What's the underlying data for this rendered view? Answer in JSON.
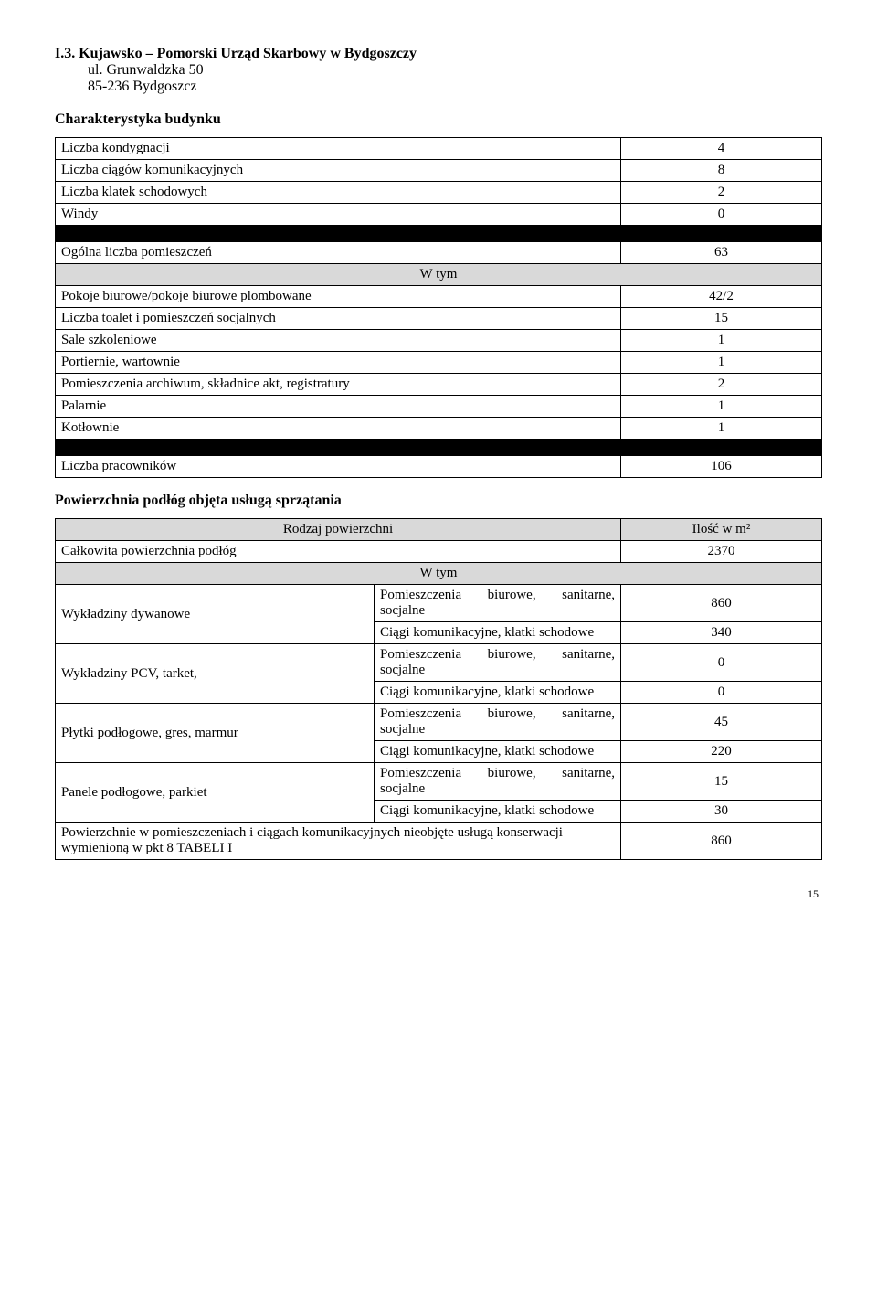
{
  "header": {
    "title": "I.3. Kujawsko – Pomorski Urząd Skarbowy w Bydgoszczy",
    "address1": "ul. Grunwaldzka 50",
    "address2": "85-236 Bydgoszcz"
  },
  "section1": {
    "heading": "Charakterystyka budynku",
    "rows": {
      "kondygnacje_label": "Liczba kondygnacji",
      "kondygnacje_val": "4",
      "ciagi_label": "Liczba ciągów komunikacyjnych",
      "ciagi_val": "8",
      "klatki_label": "Liczba klatek schodowych",
      "klatki_val": "2",
      "windy_label": "Windy",
      "windy_val": "0",
      "ogolna_label": "Ogólna liczba pomieszczeń",
      "ogolna_val": "63",
      "wtym": "W tym",
      "pokoje_label": "Pokoje biurowe/pokoje biurowe plombowane",
      "pokoje_val": "42/2",
      "toalety_label": "Liczba toalet i pomieszczeń socjalnych",
      "toalety_val": "15",
      "sale_label": "Sale szkoleniowe",
      "sale_val": "1",
      "portiernie_label": "Portiernie, wartownie",
      "portiernie_val": "1",
      "archiwum_label": "Pomieszczenia archiwum, składnice akt, registratury",
      "archiwum_val": "2",
      "palarnie_label": "Palarnie",
      "palarnie_val": "1",
      "kotlownie_label": "Kotłownie",
      "kotlownie_val": "1",
      "pracownicy_label": "Liczba pracowników",
      "pracownicy_val": "106"
    }
  },
  "section2": {
    "heading": "Powierzchnia podłóg objęta usługą sprzątania",
    "header_col1": "Rodzaj powierzchni",
    "header_col2": "Ilość w m²",
    "calkowita_label": "Całkowita powierzchnia podłóg",
    "calkowita_val": "2370",
    "wtym": "W tym",
    "cat": {
      "dywanowe": "Wykładziny dywanowe",
      "pcv": "Wykładziny PCV, tarket,",
      "plytki": "Płytki podłogowe, gres, marmur",
      "panele": "Panele podłogowe, parkiet"
    },
    "sub": {
      "biurowe": "Pomieszczenia biurowe, sanitarne, socjalne",
      "ciagi": "Ciągi komunikacyjne, klatki schodowe"
    },
    "vals": {
      "dywanowe_biurowe": "860",
      "dywanowe_ciagi": "340",
      "pcv_biurowe": "0",
      "pcv_ciagi": "0",
      "plytki_biurowe": "45",
      "plytki_ciagi": "220",
      "panele_biurowe": "15",
      "panele_ciagi": "30"
    },
    "footer_label": "Powierzchnie w pomieszczeniach i ciągach komunikacyjnych nieobjęte usługą konserwacji wymienioną w pkt 8 TABELI I",
    "footer_val": "860"
  },
  "page_number": "15"
}
